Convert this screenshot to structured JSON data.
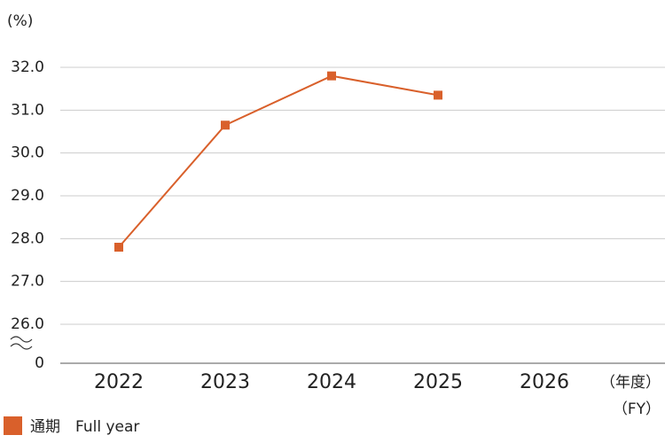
{
  "chart_data": {
    "type": "line",
    "ylabel": "(%)",
    "xlabel": [
      "（年度）",
      "（FY）"
    ],
    "categories": [
      "2022",
      "2023",
      "2024",
      "2025",
      "2026"
    ],
    "series": [
      {
        "name": "通期　Full year",
        "color": "#d9602b",
        "values": [
          27.8,
          30.65,
          31.8,
          31.35,
          null
        ]
      }
    ],
    "ylim": [
      26,
      32
    ],
    "yticks": [
      {
        "value": 32,
        "label": "32.0"
      },
      {
        "value": 31,
        "label": "31.0"
      },
      {
        "value": 30,
        "label": "30.0"
      },
      {
        "value": 29,
        "label": "29.0"
      },
      {
        "value": 28,
        "label": "28.0"
      },
      {
        "value": 27,
        "label": "27.0"
      },
      {
        "value": 26,
        "label": "26.0"
      },
      0
    ],
    "axis_break": true,
    "grid": true
  }
}
